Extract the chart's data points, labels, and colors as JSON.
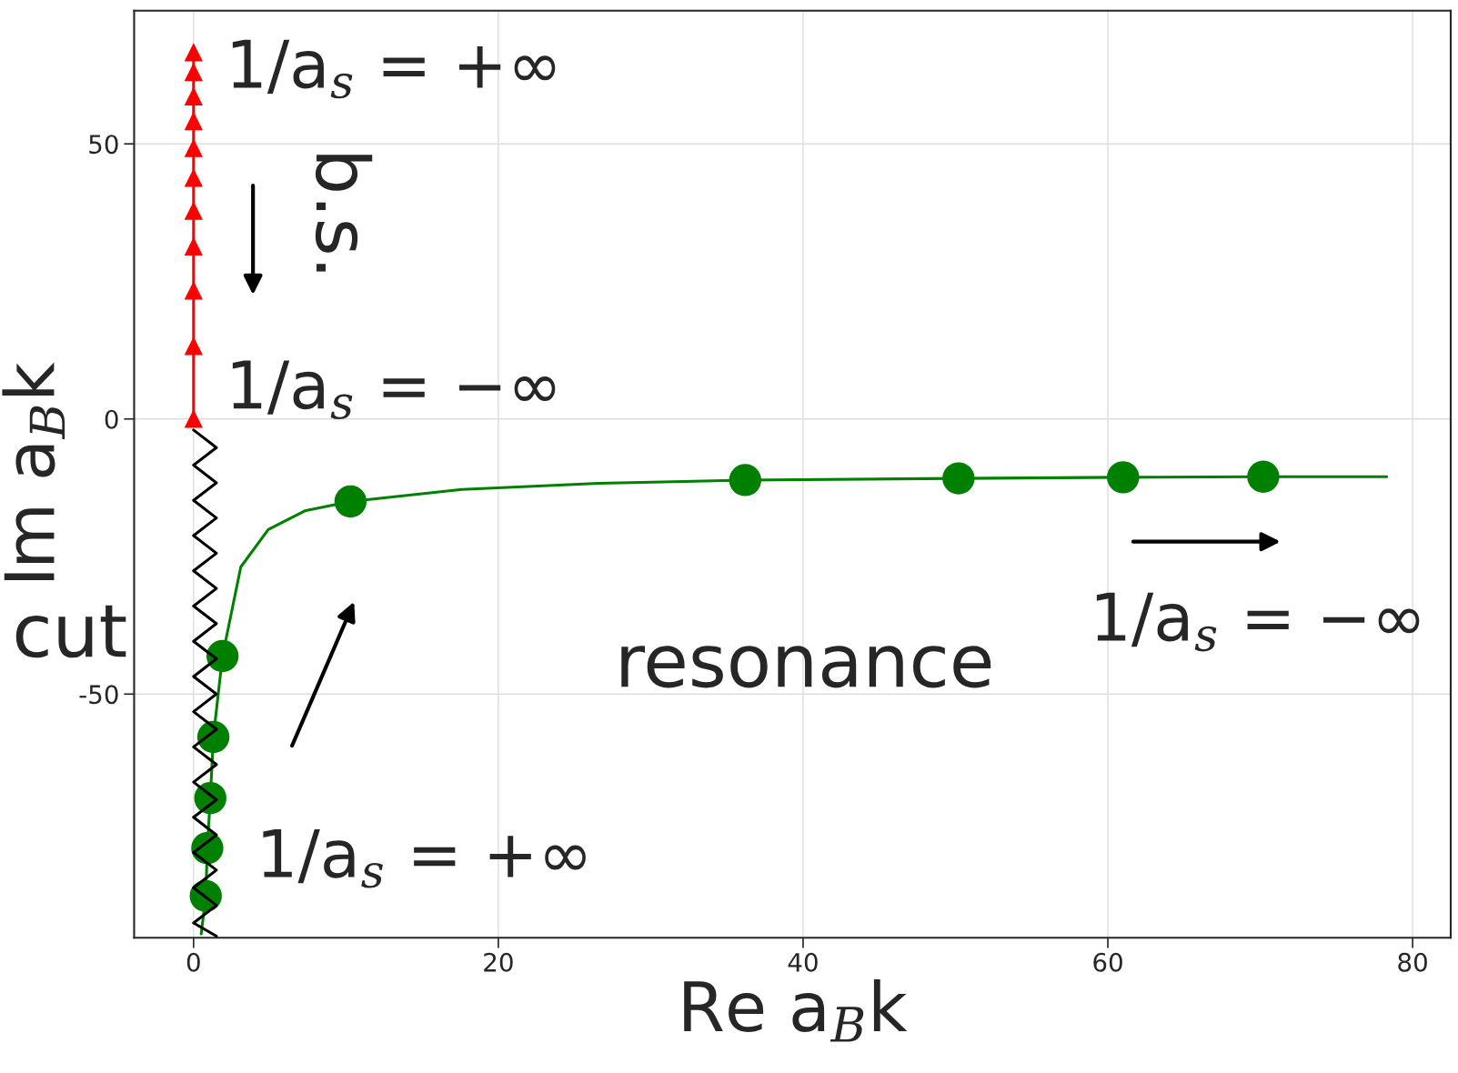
{
  "chart_data": {
    "type": "line",
    "xlabel": "Re a$_{B}$k",
    "ylabel": "Im a$_{B}$k",
    "xlim": [
      -3.9,
      82.5
    ],
    "ylim": [
      -94.3,
      74.2
    ],
    "xticks": [
      0,
      20,
      40,
      60,
      80
    ],
    "yticks": [
      -50,
      0,
      50
    ],
    "grid": true,
    "series": [
      {
        "type": "line",
        "marker": "triangle",
        "color": "#ff0000",
        "x": [
          0,
          0,
          0,
          0,
          0,
          0,
          0,
          0,
          0,
          0,
          0
        ],
        "values": [
          0,
          13.2,
          23.3,
          31.3,
          37.8,
          43.8,
          49.2,
          54.1,
          58.6,
          63.0,
          66.6
        ]
      },
      {
        "type": "line",
        "marker": "none",
        "color": "#000000",
        "x": [
          0,
          1.5,
          0,
          1.5,
          0,
          1.5,
          0,
          1.5,
          0,
          1.5,
          0,
          1.5,
          0,
          1.5,
          0,
          1.5,
          0,
          1.5,
          0,
          1.5,
          0,
          1.5,
          0,
          1.5,
          0,
          1.5,
          0,
          1.5,
          0,
          1.5
        ],
        "values": [
          -2,
          -5.2,
          -8.4,
          -11.6,
          -14.8,
          -18,
          -21.2,
          -24.4,
          -27.6,
          -30.8,
          -34,
          -37.2,
          -40.4,
          -43.6,
          -46.8,
          -50,
          -53.2,
          -56.4,
          -59.6,
          -62.8,
          -66,
          -69.2,
          -72.4,
          -75.6,
          -78.8,
          -82,
          -85.2,
          -88.4,
          -91.6,
          -94
        ]
      },
      {
        "type": "line",
        "marker": "none",
        "color": "#008000",
        "x": [
          0.5,
          0.8,
          0.9,
          1.1,
          1.3,
          1.9,
          3.1,
          4.9,
          7.3,
          10.3,
          17.6,
          26.6,
          36.2,
          50.2,
          61.0,
          70.2,
          78.3
        ],
        "values": [
          -93.6,
          -86.7,
          -78.0,
          -68.9,
          -57.8,
          -43.1,
          -26.9,
          -20.1,
          -16.7,
          -15.0,
          -12.8,
          -11.7,
          -11.1,
          -10.8,
          -10.6,
          -10.5,
          -10.5
        ]
      },
      {
        "type": "scatter",
        "marker": "circle",
        "color": "#008000",
        "x": [
          0.8,
          0.9,
          1.1,
          1.3,
          1.9,
          10.3,
          36.2,
          50.2,
          61.0,
          70.2
        ],
        "values": [
          -86.7,
          -78.0,
          -68.9,
          -57.8,
          -43.1,
          -15.0,
          -11.1,
          -10.8,
          -10.6,
          -10.5
        ]
      }
    ],
    "annotations": [
      "1/a$_{s}$ = +∞",
      "1/a$_{s}$ = −∞",
      "1/a$_{s}$ = −∞",
      "1/a$_{s}$ = +∞",
      "resonance",
      "b.s.",
      "cut"
    ]
  }
}
